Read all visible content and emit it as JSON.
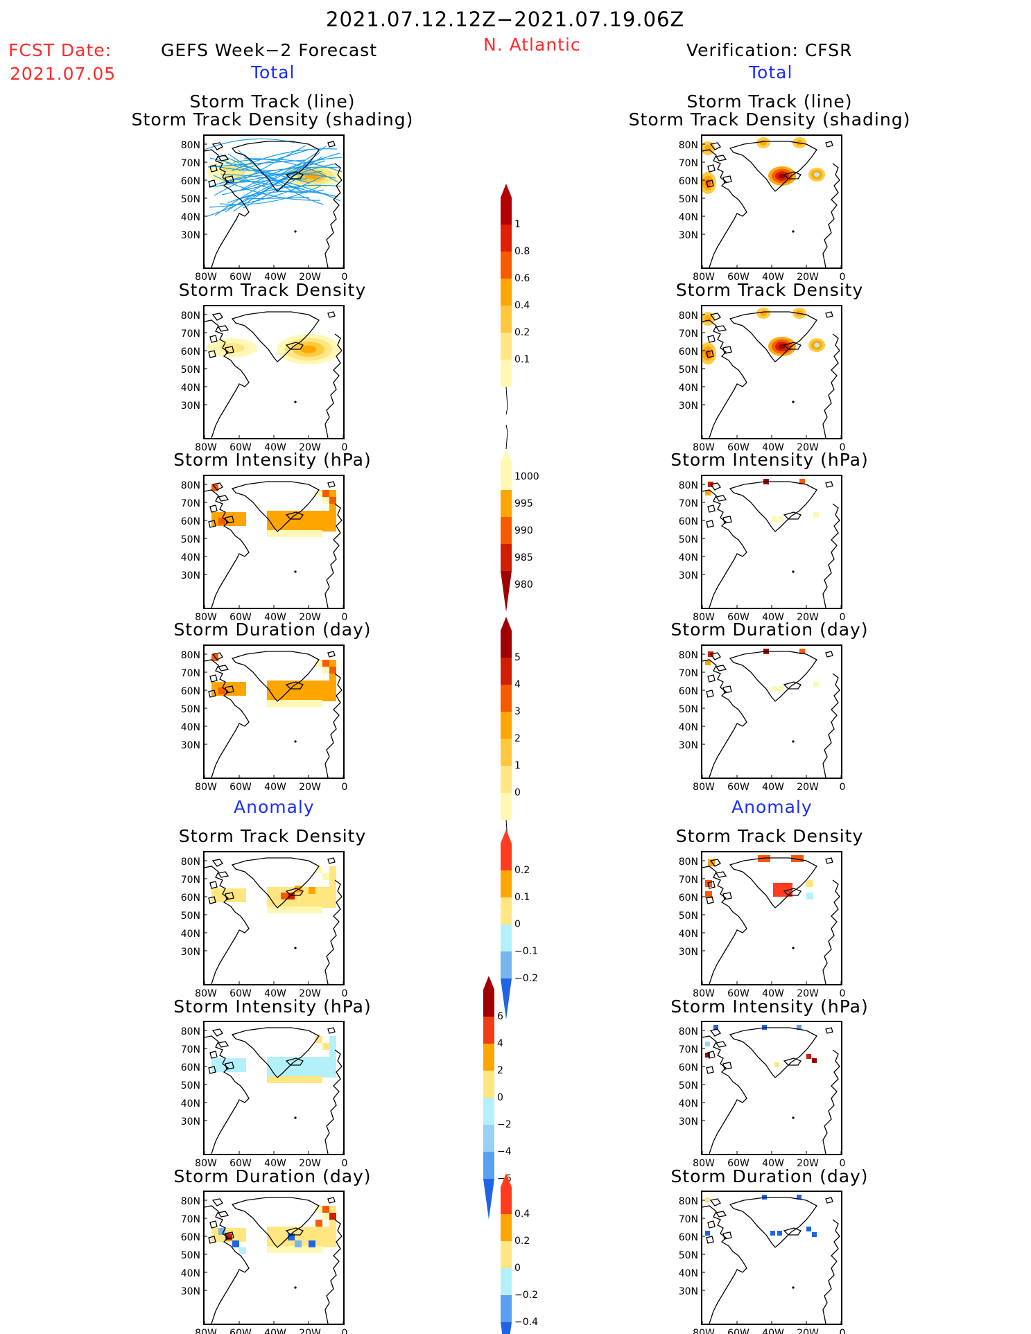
{
  "header": {
    "date_range": "2021.07.12.12Z−2021.07.19.06Z",
    "fcst_label": "FCST Date:",
    "fcst_date": "2021.07.05",
    "left_title": "GEFS Week−2 Forecast",
    "region": "N. Atlantic",
    "right_title": "Verification: CFSR",
    "total_left": "Total",
    "total_right": "Total",
    "anomaly_left": "Anomaly",
    "anomaly_right": "Anomaly"
  },
  "panel_titles": {
    "track_line": "Storm Track (line)",
    "track_shading": "Storm Track Density (shading)",
    "density": "Storm Track Density",
    "intensity": "Storm Intensity (hPa)",
    "duration": "Storm Duration (day)"
  },
  "axes": {
    "lat_ticks": [
      "80N",
      "70N",
      "60N",
      "50N",
      "40N",
      "30N"
    ],
    "lon_ticks": [
      "80W",
      "60W",
      "40W",
      "20W",
      "0"
    ]
  },
  "colorbars": {
    "density_total": {
      "labels": [
        "1",
        "0.8",
        "0.6",
        "0.4",
        "0.2",
        "0.1"
      ],
      "colors": [
        "#b40000",
        "#e02000",
        "#f85a00",
        "#ffa500",
        "#ffc83c",
        "#ffe680",
        "#fff8b4"
      ]
    },
    "intensity_total": {
      "labels": [
        "1000",
        "995",
        "990",
        "985",
        "980"
      ],
      "colors": [
        "#fff8b4",
        "#ffa500",
        "#f85a00",
        "#d21e00",
        "#a00000"
      ]
    },
    "duration_total": {
      "labels": [
        "5",
        "4",
        "3",
        "2",
        "1",
        "0"
      ],
      "colors": [
        "#a00000",
        "#d21e00",
        "#f85a00",
        "#ffa500",
        "#ffc83c",
        "#ffe680",
        "#fff8b4"
      ]
    },
    "density_anom": {
      "labels": [
        "0.2",
        "0.1",
        "0",
        "−0.1",
        "−0.2"
      ],
      "colors": [
        "#ff3c1e",
        "#ffa500",
        "#ffe680",
        "#b4f0fa",
        "#78b4f0",
        "#1e64e6"
      ]
    },
    "intensity_anom": {
      "labels": [
        "6",
        "4",
        "2",
        "0",
        "−2",
        "−4",
        "−6"
      ],
      "colors": [
        "#a00000",
        "#f03c14",
        "#ffa500",
        "#ffe680",
        "#b4f0fa",
        "#9ad0f5",
        "#5aa0f0",
        "#1e64e6"
      ]
    },
    "duration_anom": {
      "labels": [
        "0.4",
        "0.2",
        "0",
        "−0.2",
        "−0.4"
      ],
      "colors": [
        "#ff3c1e",
        "#ffa500",
        "#ffe680",
        "#b4f0fa",
        "#5aa0f0",
        "#1e64e6"
      ]
    }
  }
}
